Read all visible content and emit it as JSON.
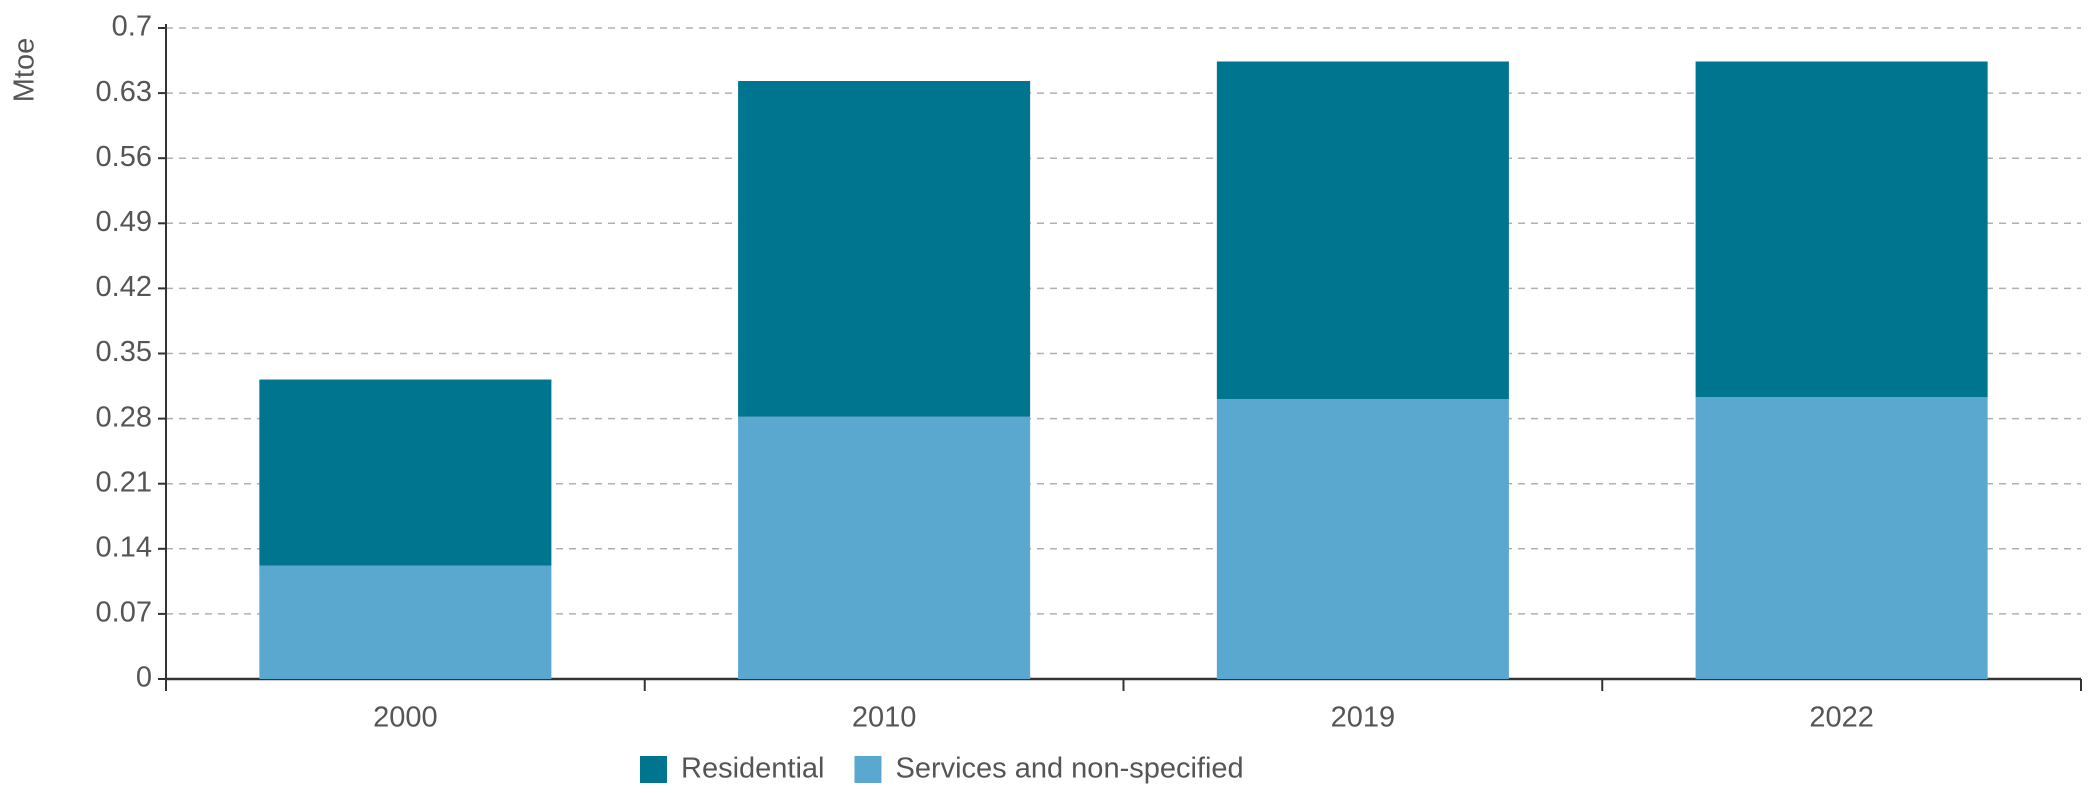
{
  "chart_data": {
    "type": "stacked_bar",
    "y_label": "Mtoe",
    "categories": [
      "2000",
      "2010",
      "2019",
      "2022"
    ],
    "series": [
      {
        "name": "Residential",
        "color": "#00758f",
        "values": [
          0.2,
          0.361,
          0.363,
          0.361
        ]
      },
      {
        "name": "Services and non-specified",
        "color": "#5aa7cf",
        "values": [
          0.122,
          0.282,
          0.301,
          0.303
        ]
      }
    ],
    "ylim": [
      0,
      0.7
    ],
    "yticks": [
      0,
      0.07,
      0.14,
      0.21,
      0.28,
      0.35,
      0.42,
      0.49,
      0.56,
      0.63,
      0.7
    ],
    "grid": true,
    "legend": "bottom"
  }
}
